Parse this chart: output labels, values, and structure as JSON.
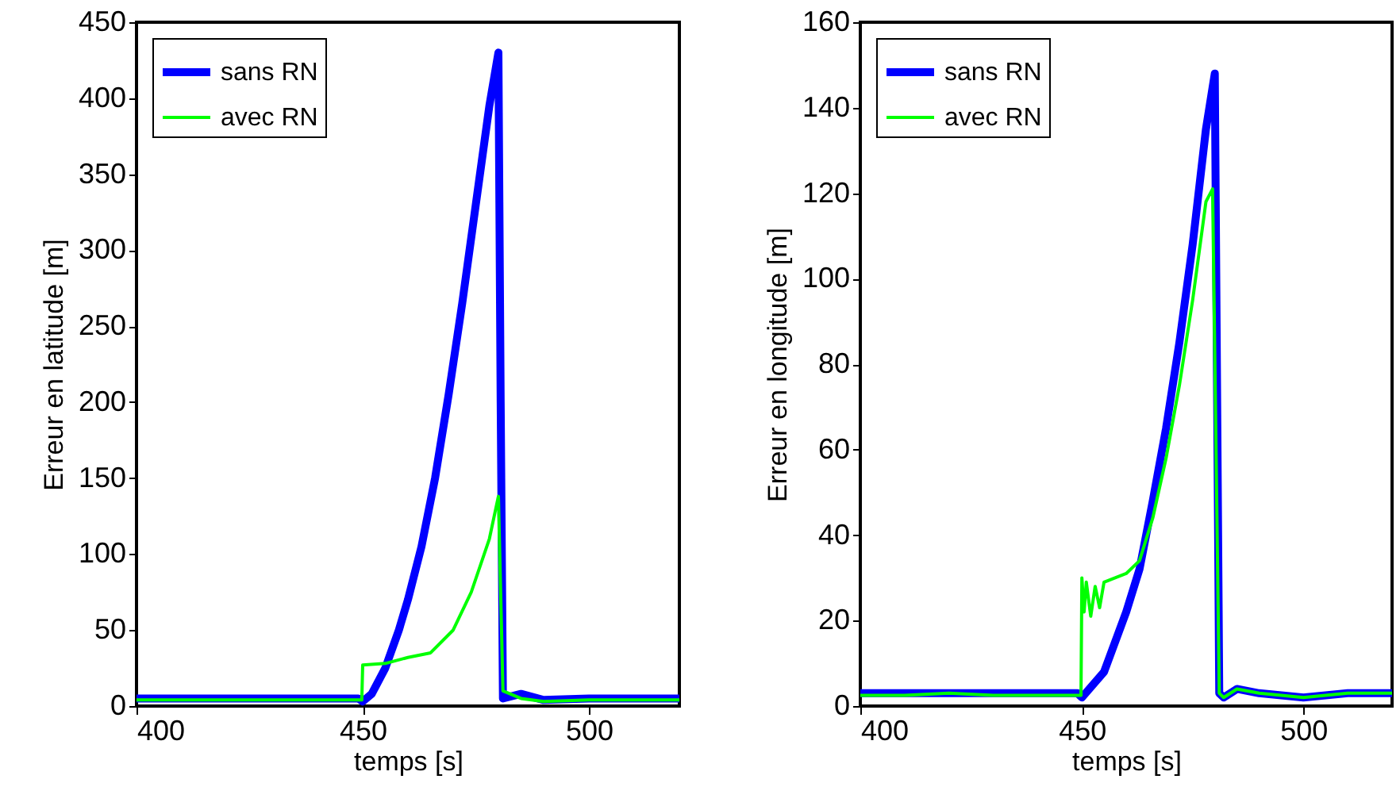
{
  "chart_data": [
    {
      "type": "line",
      "xlabel": "temps [s]",
      "ylabel": "Erreur en latitude [m]",
      "xlim": [
        400,
        520
      ],
      "ylim": [
        0,
        450
      ],
      "xticks": [
        400,
        450,
        500
      ],
      "yticks": [
        0,
        50,
        100,
        150,
        200,
        250,
        300,
        350,
        400,
        450
      ],
      "legend": "top left",
      "series": [
        {
          "name": "sans RN",
          "color": "#0000ff",
          "x": [
            400,
            420,
            440,
            449,
            450,
            452,
            455,
            458,
            460,
            463,
            466,
            469,
            472,
            475,
            478,
            480,
            480.5,
            481,
            485,
            490,
            500,
            510,
            520
          ],
          "values": [
            5,
            5,
            5,
            5,
            3,
            8,
            25,
            50,
            70,
            105,
            150,
            205,
            265,
            330,
            395,
            430,
            200,
            5,
            8,
            4,
            5,
            5,
            5
          ]
        },
        {
          "name": "avec RN",
          "color": "#00ff00",
          "x": [
            400,
            420,
            440,
            449.8,
            450,
            455,
            460,
            465,
            470,
            474,
            478,
            480,
            481,
            485,
            490,
            500,
            510,
            520
          ],
          "values": [
            4,
            4,
            4,
            4,
            27,
            28,
            32,
            35,
            50,
            75,
            110,
            138,
            10,
            5,
            3,
            4,
            4,
            4
          ]
        }
      ]
    },
    {
      "type": "line",
      "xlabel": "temps [s]",
      "ylabel": "Erreur en longitude [m]",
      "xlim": [
        400,
        520
      ],
      "ylim": [
        0,
        160
      ],
      "xticks": [
        400,
        450,
        500
      ],
      "yticks": [
        0,
        20,
        40,
        60,
        80,
        100,
        120,
        140,
        160
      ],
      "legend": "top left",
      "series": [
        {
          "name": "sans RN",
          "color": "#0000ff",
          "x": [
            400,
            410,
            420,
            430,
            440,
            449,
            450,
            455,
            460,
            463,
            466,
            469,
            472,
            475,
            478,
            480,
            481,
            482,
            485,
            490,
            500,
            510,
            520
          ],
          "values": [
            3,
            3,
            3,
            3,
            3,
            3,
            2,
            8,
            22,
            32,
            48,
            65,
            85,
            108,
            135,
            148,
            3,
            2,
            4,
            3,
            2,
            3,
            3
          ]
        },
        {
          "name": "avec RN",
          "color": "#00ff00",
          "x": [
            400,
            410,
            420,
            430,
            440,
            449.8,
            450,
            450.5,
            451,
            452,
            453,
            454,
            455,
            460,
            463,
            466,
            469,
            472,
            475,
            478,
            479.5,
            481,
            482,
            485,
            490,
            500,
            510,
            520
          ],
          "values": [
            2.5,
            2.5,
            3,
            2.5,
            2.5,
            2.5,
            30,
            22,
            29,
            21,
            28,
            23,
            29,
            31,
            34,
            44,
            58,
            75,
            95,
            118,
            121,
            3,
            2,
            4,
            3,
            2,
            3,
            3
          ]
        }
      ]
    }
  ]
}
